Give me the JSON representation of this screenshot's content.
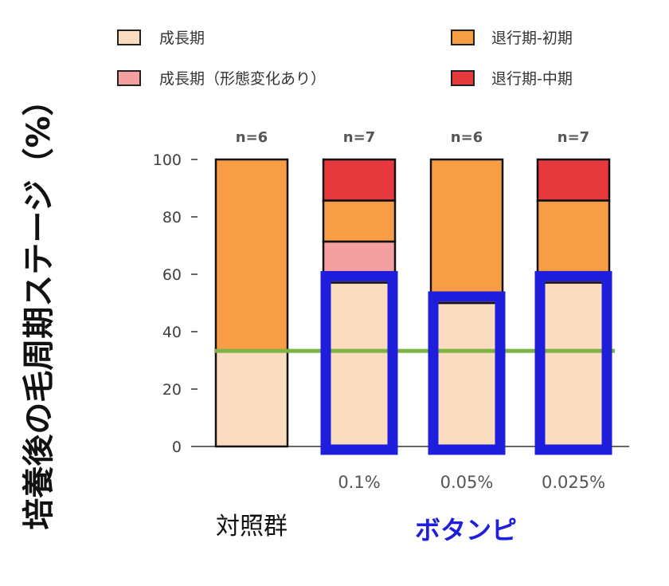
{
  "chart_data": {
    "type": "bar",
    "stacked": true,
    "ylabel": "培養後の毛周期ステージ（%）",
    "ylim": [
      0,
      100
    ],
    "yticks": [
      0,
      20,
      40,
      60,
      80,
      100
    ],
    "categories": [
      "",
      "0.1%",
      "0.05%",
      "0.025%"
    ],
    "sample_sizes": [
      "n=6",
      "n=7",
      "n=6",
      "n=7"
    ],
    "series": [
      {
        "name": "成長期",
        "color": "#FCDCC0",
        "values": [
          33.3,
          57.1,
          50.0,
          57.1
        ]
      },
      {
        "name": "成長期（形態変化あり）",
        "color": "#F4A0A0",
        "values": [
          0,
          14.3,
          0,
          0
        ]
      },
      {
        "name": "退行期-初期",
        "color": "#F79D45",
        "values": [
          66.7,
          14.3,
          50.0,
          28.6
        ]
      },
      {
        "name": "退行期-中期",
        "color": "#E5393D",
        "values": [
          0,
          14.3,
          0,
          14.3
        ]
      }
    ],
    "control_line": {
      "value": 33.3,
      "color": "#7CB342"
    },
    "highlight_color": "#1E1EDC",
    "group_labels": {
      "control": "対照群",
      "treatment": "ボタンピ"
    },
    "legend_placement": "top"
  }
}
